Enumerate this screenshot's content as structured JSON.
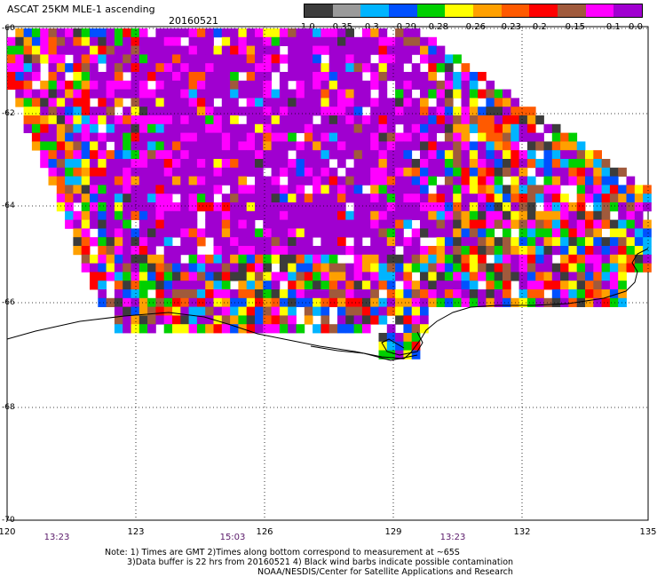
{
  "title": "ASCAT 25KM MLE-1 ascending",
  "date": "20160521",
  "colorbar": {
    "colors": [
      "#3c3c3c",
      "#9a9a9a",
      "#00b4ff",
      "#0050ff",
      "#00d000",
      "#ffff00",
      "#ffa000",
      "#ff5a00",
      "#ff0000",
      "#a05a3c",
      "#ff00ff",
      "#a000d0"
    ],
    "labels": [
      "-1.0",
      "-0.35",
      "-0.3",
      "-0.29",
      "-0.28",
      "-0.26",
      "-0.23",
      "-0.2",
      "-0.15",
      "-0.1",
      "0.0"
    ]
  },
  "axes": {
    "lat_labels": [
      "-60",
      "-62",
      "-64",
      "-66",
      "-68",
      "-70"
    ],
    "lon_labels": [
      "120",
      "123",
      "126",
      "129",
      "132",
      "135"
    ],
    "time_labels": [
      "13:23",
      "15:03",
      "13:23"
    ]
  },
  "notes": [
    "Note: 1) Times are GMT 2)Times along bottom correspond to measurement at ~65S",
    "3)Data buffer is 22 hrs from 20160521 4) Black wind barbs indicate possible contamination",
    "NOAA/NESDIS/Center for Satellite Applications and Research"
  ]
}
